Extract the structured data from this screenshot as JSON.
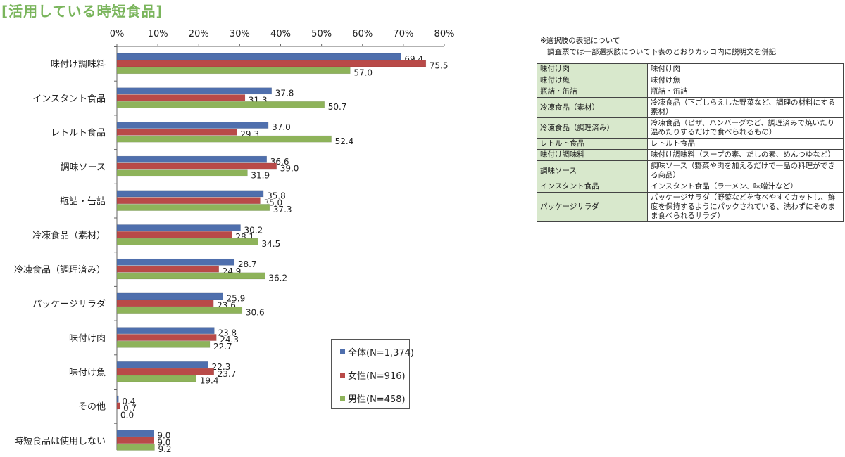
{
  "title": "[活用している時短食品]",
  "colors": {
    "title": "#7ab55c",
    "series_all": "#4f6fad",
    "series_female": "#b94a48",
    "series_male": "#8eb35a",
    "table_term_bg": "#d8e8cc"
  },
  "chart_data": {
    "type": "bar",
    "orientation": "horizontal",
    "categories": [
      "味付け調味料",
      "インスタント食品",
      "レトルト食品",
      "調味ソース",
      "瓶詰・缶詰",
      "冷凍食品（素材）",
      "冷凍食品（調理済み）",
      "パッケージサラダ",
      "味付け肉",
      "味付け魚",
      "その他",
      "時短食品は使用しない"
    ],
    "series": [
      {
        "name": "全体(N=1,374)",
        "values": [
          69.4,
          37.8,
          37.0,
          36.6,
          35.8,
          30.2,
          28.7,
          25.9,
          23.8,
          22.3,
          0.4,
          9.0
        ]
      },
      {
        "name": "女性(N=916)",
        "values": [
          75.5,
          31.3,
          29.3,
          39.0,
          35.0,
          28.1,
          24.9,
          23.6,
          24.3,
          23.7,
          0.7,
          9.0
        ]
      },
      {
        "name": "男性(N=458)",
        "values": [
          57.0,
          50.7,
          52.4,
          31.9,
          37.3,
          34.5,
          36.2,
          30.6,
          22.7,
          19.4,
          0.0,
          9.2
        ]
      }
    ],
    "value_labels": [
      [
        "69.4",
        "37.8",
        "37.0",
        "36.6",
        "35.8",
        "30.2",
        "28.7",
        "25.9",
        "23.8",
        "22.3",
        "0.4",
        "9.0"
      ],
      [
        "75.5",
        "31.3",
        "29.3",
        "39.0",
        "35.0",
        "28.1",
        "24.9",
        "23.6",
        "24.3",
        "23.7",
        "0.7",
        "9.0"
      ],
      [
        "57.0",
        "50.7",
        "52.4",
        "31.9",
        "37.3",
        "34.5",
        "36.2",
        "30.6",
        "22.7",
        "19.4",
        "0.0",
        "9.2"
      ]
    ],
    "axis": {
      "ticks": [
        "0%",
        "10%",
        "20%",
        "30%",
        "40%",
        "50%",
        "60%",
        "70%",
        "80%"
      ],
      "xlim": [
        0,
        80
      ],
      "position": "top"
    },
    "grid": false,
    "legend_position": "bottom-right of plot"
  },
  "notes": {
    "line1": "※選択肢の表記について",
    "line2": "調査票では一部選択肢について下表のとおりカッコ内に説明文を併記"
  },
  "explanation_table": [
    {
      "term": "味付け肉",
      "desc": "味付け肉"
    },
    {
      "term": "味付け魚",
      "desc": "味付け魚"
    },
    {
      "term": "瓶詰・缶詰",
      "desc": "瓶詰・缶詰"
    },
    {
      "term": "冷凍食品（素材）",
      "desc": "冷凍食品（下ごしらえした野菜など、調理の材料にする素材）"
    },
    {
      "term": "冷凍食品（調理済み）",
      "desc": "冷凍食品（ピザ、ハンバーグなど、調理済みで焼いたり温めたりするだけで食べられるもの）"
    },
    {
      "term": "レトルト食品",
      "desc": "レトルト食品"
    },
    {
      "term": "味付け調味料",
      "desc": "味付け調味料（スープの素、だしの素、めんつゆなど）"
    },
    {
      "term": "調味ソース",
      "desc": "調味ソース（野菜や肉を加えるだけで一品の料理ができる商品）"
    },
    {
      "term": "インスタント食品",
      "desc": "インスタント食品（ラーメン、味噌汁など）"
    },
    {
      "term": "パッケージサラダ",
      "desc": "パッケージサラダ（野菜などを食べやすくカットし、鮮度を保持するようにパックされている、洗わずにそのまま食べられるサラダ）"
    }
  ]
}
